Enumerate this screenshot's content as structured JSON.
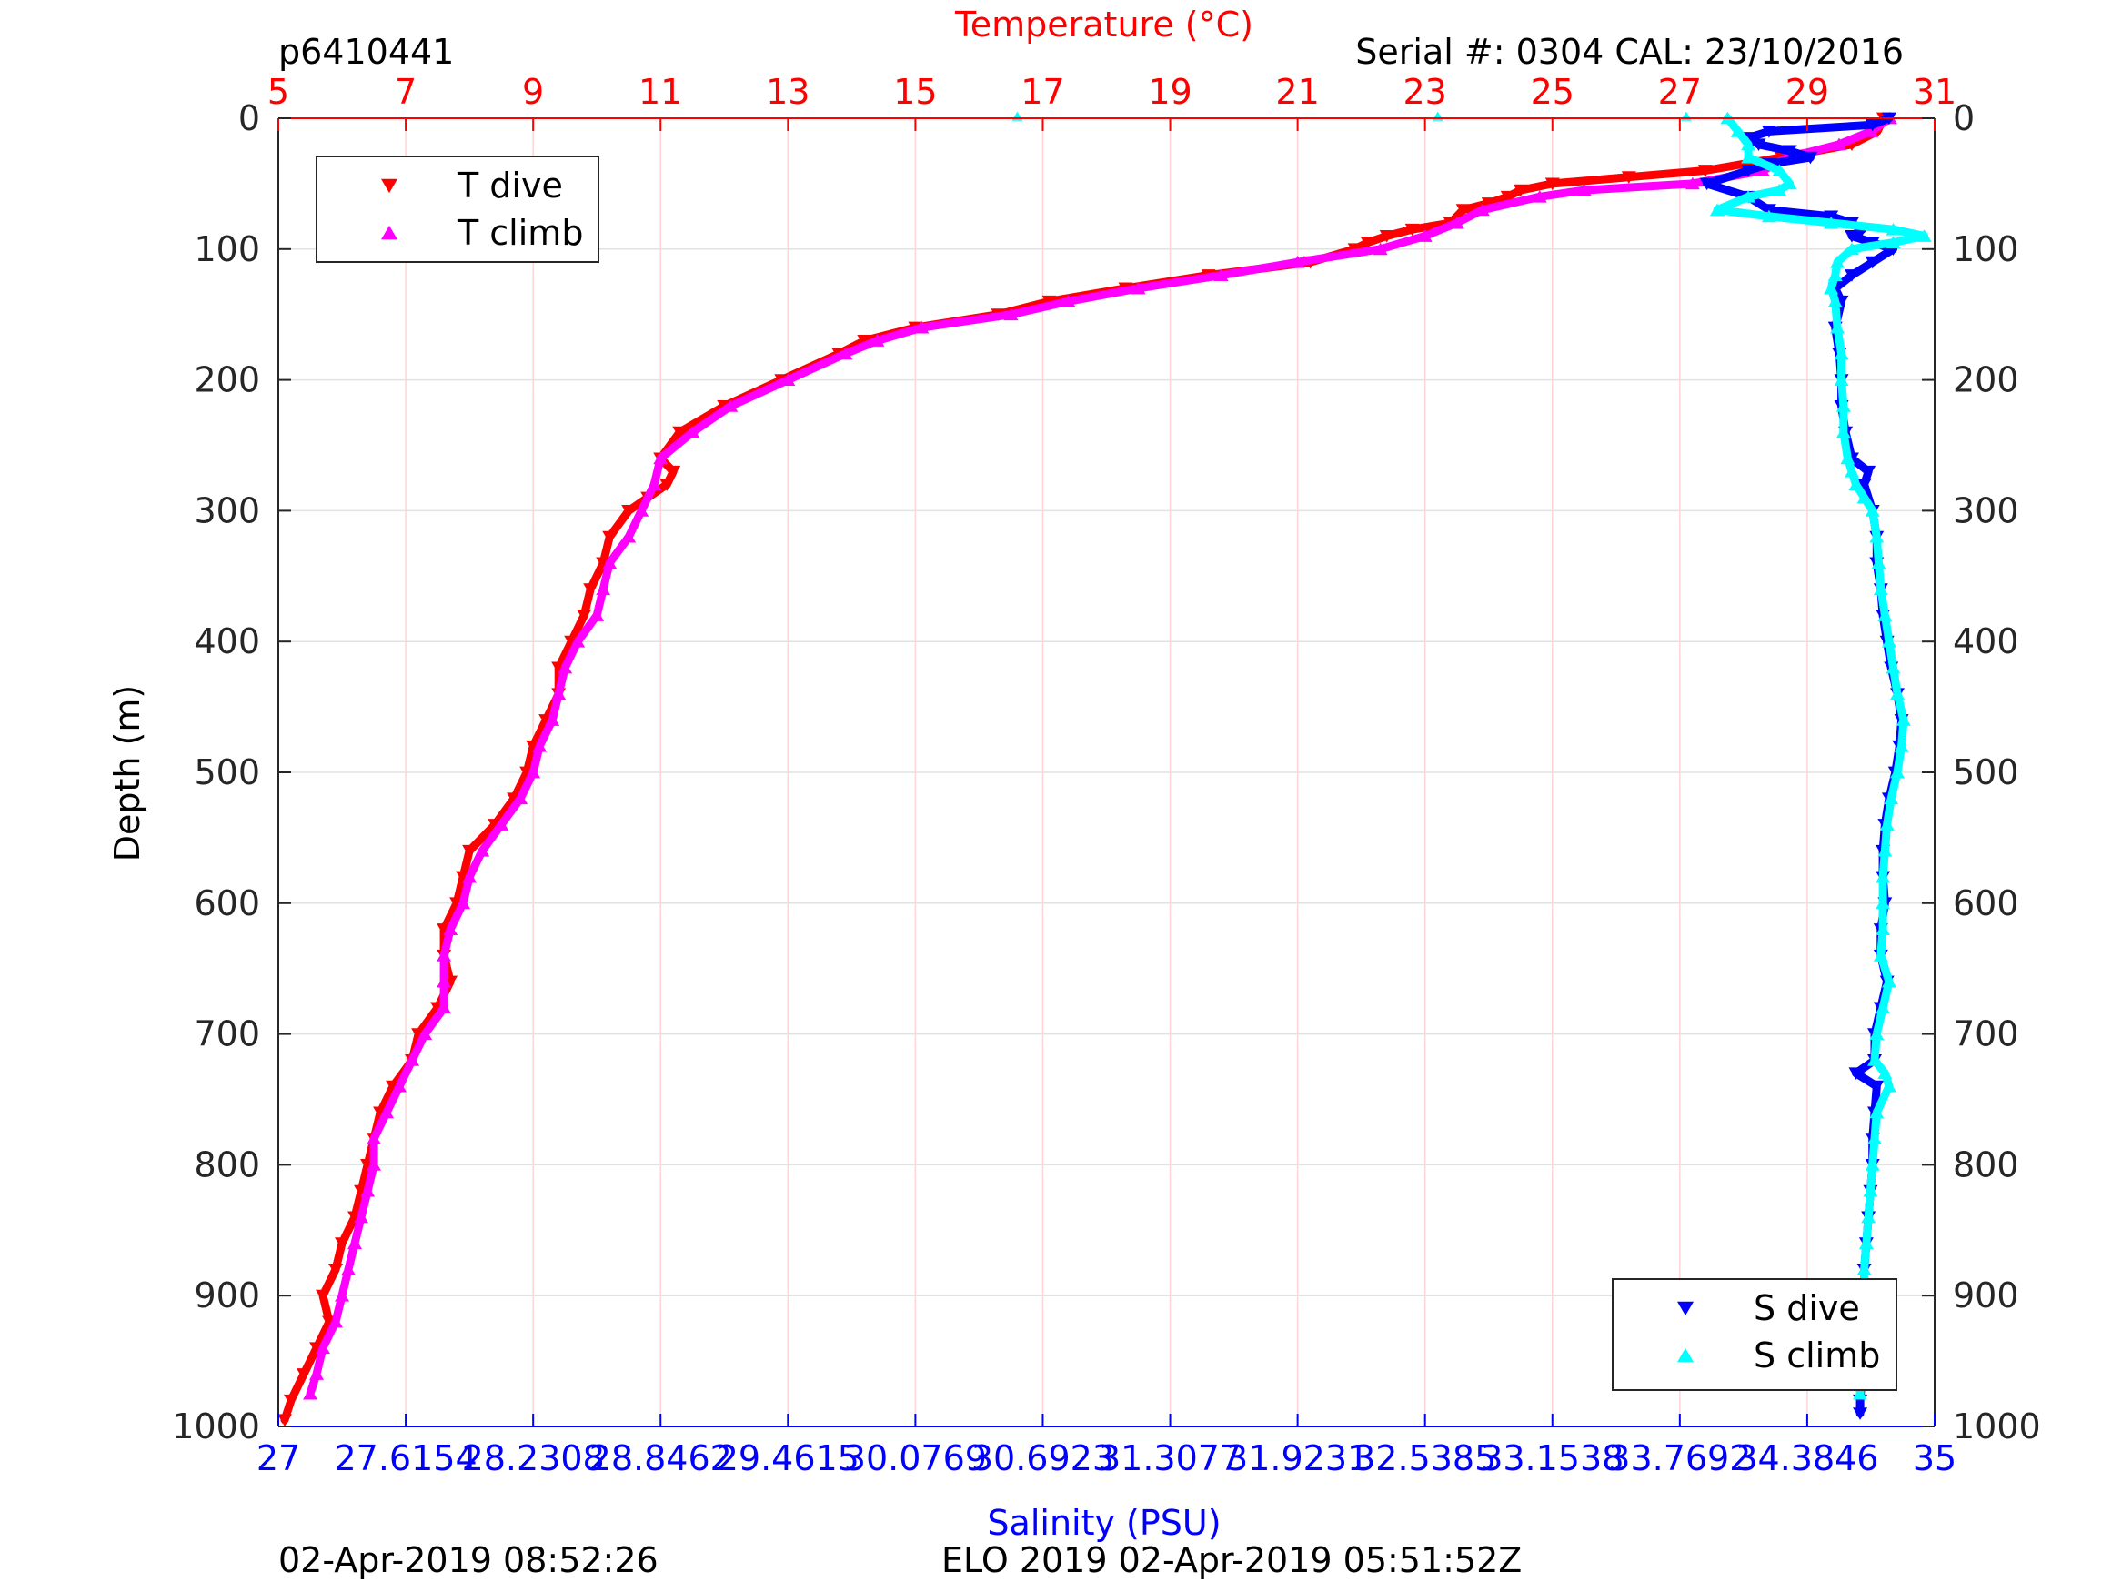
{
  "header": {
    "profile_id": "p6410441",
    "serial_cal": "Serial #: 0304  CAL: 23/10/2016"
  },
  "footer": {
    "left": "02-Apr-2019 08:52:26",
    "center": "ELO 2019 02-Apr-2019 05:51:52Z"
  },
  "chart_data": {
    "type": "scatter",
    "ylabel": "Depth (m)",
    "top_xlabel": "Temperature (°C)",
    "bottom_xlabel": "Salinity (PSU)",
    "ylim": [
      0,
      1000
    ],
    "y_reversed": true,
    "y_ticks": [
      "0",
      "100",
      "200",
      "300",
      "400",
      "500",
      "600",
      "700",
      "800",
      "900",
      "1000"
    ],
    "y_tick_values": [
      0,
      100,
      200,
      300,
      400,
      500,
      600,
      700,
      800,
      900,
      1000
    ],
    "temperature_axis": {
      "range": [
        5,
        31
      ],
      "ticks": [
        "5",
        "7",
        "9",
        "11",
        "13",
        "15",
        "17",
        "19",
        "21",
        "23",
        "25",
        "27",
        "29",
        "31"
      ],
      "tick_values": [
        5,
        7,
        9,
        11,
        13,
        15,
        17,
        19,
        21,
        23,
        25,
        27,
        29,
        31
      ],
      "color": "#ff0000"
    },
    "salinity_axis": {
      "range": [
        27,
        35
      ],
      "ticks": [
        "27",
        "27.6154",
        "28.2308",
        "28.8462",
        "29.4615",
        "30.0769",
        "30.6923",
        "31.3077",
        "31.9231",
        "32.5385",
        "33.1538",
        "33.7692",
        "34.3846",
        "35"
      ],
      "tick_values": [
        27,
        27.6154,
        28.2308,
        28.8462,
        29.4615,
        30.0769,
        30.6923,
        31.3077,
        31.9231,
        32.5385,
        33.1538,
        33.7692,
        34.3846,
        35
      ],
      "color": "#0000ff"
    },
    "grid": "vertical lines at temperature ticks (light red), horizontal lines at depth ticks (light gray)",
    "legend_temperature": {
      "position": "top-left",
      "entries": [
        "T dive",
        "T climb"
      ]
    },
    "legend_salinity": {
      "position": "bottom-right",
      "entries": [
        "S dive",
        "S climb"
      ]
    },
    "series": [
      {
        "name": "T dive",
        "axis": "temperature",
        "marker": "down-triangle",
        "color": "#ff0000",
        "depth": [
          0,
          10,
          20,
          30,
          40,
          45,
          50,
          55,
          60,
          65,
          70,
          80,
          85,
          90,
          95,
          100,
          110,
          120,
          130,
          140,
          150,
          160,
          170,
          180,
          200,
          220,
          240,
          260,
          270,
          280,
          290,
          300,
          320,
          340,
          360,
          380,
          400,
          420,
          440,
          460,
          480,
          500,
          520,
          540,
          560,
          580,
          600,
          620,
          640,
          660,
          680,
          700,
          720,
          740,
          760,
          780,
          800,
          820,
          840,
          860,
          880,
          900,
          920,
          940,
          960,
          980,
          995
        ],
        "temp": [
          30.2,
          30.1,
          29.7,
          28.6,
          27.4,
          26.2,
          25.0,
          24.5,
          24.3,
          24.0,
          23.6,
          23.4,
          22.8,
          22.4,
          22.1,
          21.9,
          21.2,
          19.6,
          18.3,
          17.1,
          16.3,
          15.0,
          14.2,
          13.8,
          12.9,
          12.0,
          11.3,
          11.0,
          11.2,
          11.1,
          10.8,
          10.5,
          10.2,
          10.1,
          9.9,
          9.8,
          9.6,
          9.4,
          9.4,
          9.2,
          9.0,
          8.9,
          8.7,
          8.4,
          8.0,
          7.9,
          7.8,
          7.6,
          7.6,
          7.7,
          7.5,
          7.2,
          7.1,
          6.8,
          6.6,
          6.5,
          6.4,
          6.3,
          6.2,
          6.0,
          5.9,
          5.7,
          5.8,
          5.6,
          5.4,
          5.2,
          5.1
        ]
      },
      {
        "name": "T climb",
        "axis": "temperature",
        "marker": "up-triangle",
        "color": "#ff00ff",
        "depth": [
          0,
          10,
          20,
          30,
          40,
          50,
          55,
          60,
          70,
          80,
          90,
          100,
          110,
          120,
          130,
          140,
          150,
          160,
          170,
          180,
          200,
          220,
          240,
          260,
          280,
          300,
          320,
          340,
          360,
          380,
          400,
          420,
          440,
          460,
          480,
          500,
          520,
          540,
          560,
          580,
          600,
          620,
          640,
          660,
          680,
          700,
          720,
          740,
          760,
          780,
          800,
          820,
          840,
          860,
          880,
          900,
          920,
          940,
          960,
          975
        ],
        "temp": [
          30.3,
          30.0,
          29.5,
          28.7,
          28.3,
          27.2,
          25.5,
          24.8,
          23.9,
          23.5,
          23.0,
          22.3,
          21.0,
          19.8,
          18.5,
          17.4,
          16.5,
          15.1,
          14.4,
          13.9,
          13.0,
          12.1,
          11.5,
          11.0,
          10.9,
          10.7,
          10.5,
          10.2,
          10.1,
          10.0,
          9.7,
          9.5,
          9.4,
          9.3,
          9.1,
          9.0,
          8.8,
          8.5,
          8.2,
          8.0,
          7.9,
          7.7,
          7.6,
          7.6,
          7.6,
          7.3,
          7.1,
          6.9,
          6.7,
          6.5,
          6.5,
          6.4,
          6.3,
          6.2,
          6.1,
          6.0,
          5.9,
          5.7,
          5.6,
          5.5
        ]
      },
      {
        "name": "S dive",
        "axis": "salinity",
        "marker": "down-triangle",
        "color": "#0000ff",
        "depth": [
          0,
          5,
          10,
          15,
          20,
          25,
          30,
          35,
          40,
          50,
          60,
          70,
          75,
          80,
          85,
          90,
          95,
          100,
          110,
          120,
          130,
          140,
          160,
          180,
          200,
          220,
          240,
          260,
          270,
          280,
          300,
          320,
          340,
          360,
          380,
          400,
          420,
          440,
          460,
          480,
          500,
          520,
          540,
          560,
          580,
          600,
          620,
          640,
          660,
          680,
          700,
          720,
          730,
          740,
          760,
          780,
          800,
          820,
          840,
          860,
          880,
          900,
          920,
          940,
          960,
          980,
          990
        ],
        "sal": [
          34.78,
          34.7,
          34.2,
          34.1,
          34.15,
          34.3,
          34.4,
          34.2,
          34.1,
          33.9,
          34.1,
          34.2,
          34.5,
          34.6,
          34.65,
          34.6,
          34.7,
          34.8,
          34.7,
          34.6,
          34.52,
          34.55,
          34.52,
          34.54,
          34.55,
          34.55,
          34.57,
          34.6,
          34.68,
          34.66,
          34.7,
          34.72,
          34.72,
          34.74,
          34.75,
          34.77,
          34.79,
          34.82,
          34.84,
          34.83,
          34.81,
          34.78,
          34.76,
          34.75,
          34.75,
          34.76,
          34.74,
          34.74,
          34.77,
          34.74,
          34.71,
          34.71,
          34.62,
          34.72,
          34.71,
          34.7,
          34.7,
          34.69,
          34.68,
          34.67,
          34.66,
          34.66,
          34.66,
          34.65,
          34.65,
          34.64,
          34.64
        ]
      },
      {
        "name": "S climb",
        "axis": "salinity",
        "marker": "up-triangle",
        "color": "#00ffff",
        "depth": [
          0,
          10,
          20,
          30,
          40,
          50,
          55,
          60,
          70,
          75,
          80,
          85,
          90,
          95,
          100,
          110,
          120,
          130,
          140,
          160,
          180,
          200,
          220,
          240,
          260,
          270,
          280,
          290,
          300,
          320,
          340,
          360,
          380,
          400,
          420,
          440,
          460,
          480,
          500,
          520,
          540,
          560,
          580,
          600,
          620,
          640,
          660,
          680,
          700,
          720,
          730,
          740,
          760,
          780,
          800,
          820,
          840,
          860,
          880,
          900,
          920,
          940,
          960,
          975
        ],
        "sal": [
          34.0,
          34.05,
          34.1,
          34.1,
          34.25,
          34.3,
          34.25,
          34.1,
          33.95,
          34.2,
          34.5,
          34.8,
          34.95,
          34.8,
          34.6,
          34.53,
          34.52,
          34.5,
          34.52,
          34.53,
          34.55,
          34.55,
          34.56,
          34.56,
          34.58,
          34.6,
          34.62,
          34.66,
          34.7,
          34.72,
          34.73,
          34.74,
          34.76,
          34.78,
          34.8,
          34.82,
          34.85,
          34.84,
          34.82,
          34.79,
          34.77,
          34.76,
          34.75,
          34.75,
          34.75,
          34.74,
          34.78,
          34.75,
          34.72,
          34.71,
          34.76,
          34.78,
          34.72,
          34.71,
          34.7,
          34.69,
          34.68,
          34.67,
          34.66,
          34.66,
          34.65,
          34.65,
          34.64,
          34.64
        ]
      }
    ]
  }
}
